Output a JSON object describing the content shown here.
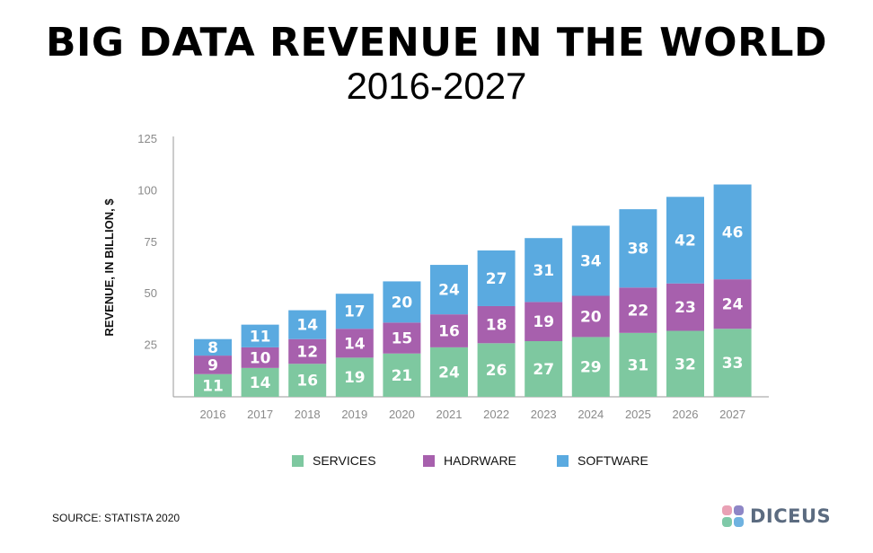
{
  "header": {
    "title": "BIG DATA REVENUE IN THE WORLD",
    "subtitle": "2016-2027"
  },
  "chart_data": {
    "type": "bar",
    "stacked": true,
    "categories": [
      "2016",
      "2017",
      "2018",
      "2019",
      "2020",
      "2021",
      "2022",
      "2023",
      "2024",
      "2025",
      "2026",
      "2027"
    ],
    "series": [
      {
        "name": "SERVICES",
        "color": "#7ec8a0",
        "values": [
          11,
          14,
          16,
          19,
          21,
          24,
          26,
          27,
          29,
          31,
          32,
          33
        ]
      },
      {
        "name": "HADRWARE",
        "color": "#a760ad",
        "values": [
          9,
          10,
          12,
          14,
          15,
          16,
          18,
          19,
          20,
          22,
          23,
          24
        ]
      },
      {
        "name": "SOFTWARE",
        "color": "#5aaae0",
        "values": [
          8,
          11,
          14,
          17,
          20,
          24,
          27,
          31,
          34,
          38,
          42,
          46
        ]
      }
    ],
    "y_ticks": [
      25,
      50,
      75,
      100,
      125
    ],
    "ylim": [
      0,
      125
    ],
    "ylabel": "REVENUE, IN BILLION, $",
    "xlabel": ""
  },
  "legend": {
    "items": [
      {
        "label": "SERVICES",
        "color": "#7ec8a0"
      },
      {
        "label": "HADRWARE",
        "color": "#a760ad"
      },
      {
        "label": "SOFTWARE",
        "color": "#5aaae0"
      }
    ]
  },
  "footer": {
    "source": "SOURCE: STATISTA 2020",
    "logo_text": "DICEUS"
  }
}
